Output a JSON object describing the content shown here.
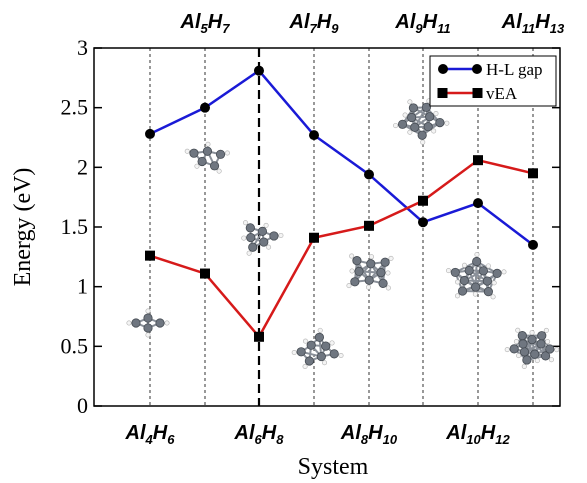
{
  "chart_data": {
    "type": "line",
    "ylabel": "Energy (eV)",
    "xlabel": "System",
    "ylim": [
      0,
      3
    ],
    "yticks": [
      "0",
      "0.5",
      "1",
      "1.5",
      "2",
      "2.5",
      "3"
    ],
    "categories": [
      {
        "base": "Al",
        "n1": "4",
        "mid": "H",
        "n2": "6"
      },
      {
        "base": "Al",
        "n1": "5",
        "mid": "H",
        "n2": "7"
      },
      {
        "base": "Al",
        "n1": "6",
        "mid": "H",
        "n2": "8"
      },
      {
        "base": "Al",
        "n1": "7",
        "mid": "H",
        "n2": "9"
      },
      {
        "base": "Al",
        "n1": "8",
        "mid": "H",
        "n2": "10"
      },
      {
        "base": "Al",
        "n1": "9",
        "mid": "H",
        "n2": "11"
      },
      {
        "base": "Al",
        "n1": "10",
        "mid": "H",
        "n2": "12"
      },
      {
        "base": "Al",
        "n1": "11",
        "mid": "H",
        "n2": "13"
      }
    ],
    "series": [
      {
        "name": "H-L gap",
        "color": "#1a1ad6",
        "marker": "circle",
        "values": [
          2.28,
          2.5,
          2.81,
          2.27,
          1.94,
          1.54,
          1.7,
          1.35
        ]
      },
      {
        "name": "vEA",
        "color": "#d61a1a",
        "marker": "square",
        "values": [
          1.26,
          1.11,
          0.58,
          1.41,
          1.51,
          1.72,
          2.06,
          1.95
        ]
      }
    ],
    "legend_position": "top-right",
    "highlight_category_index": 2
  }
}
